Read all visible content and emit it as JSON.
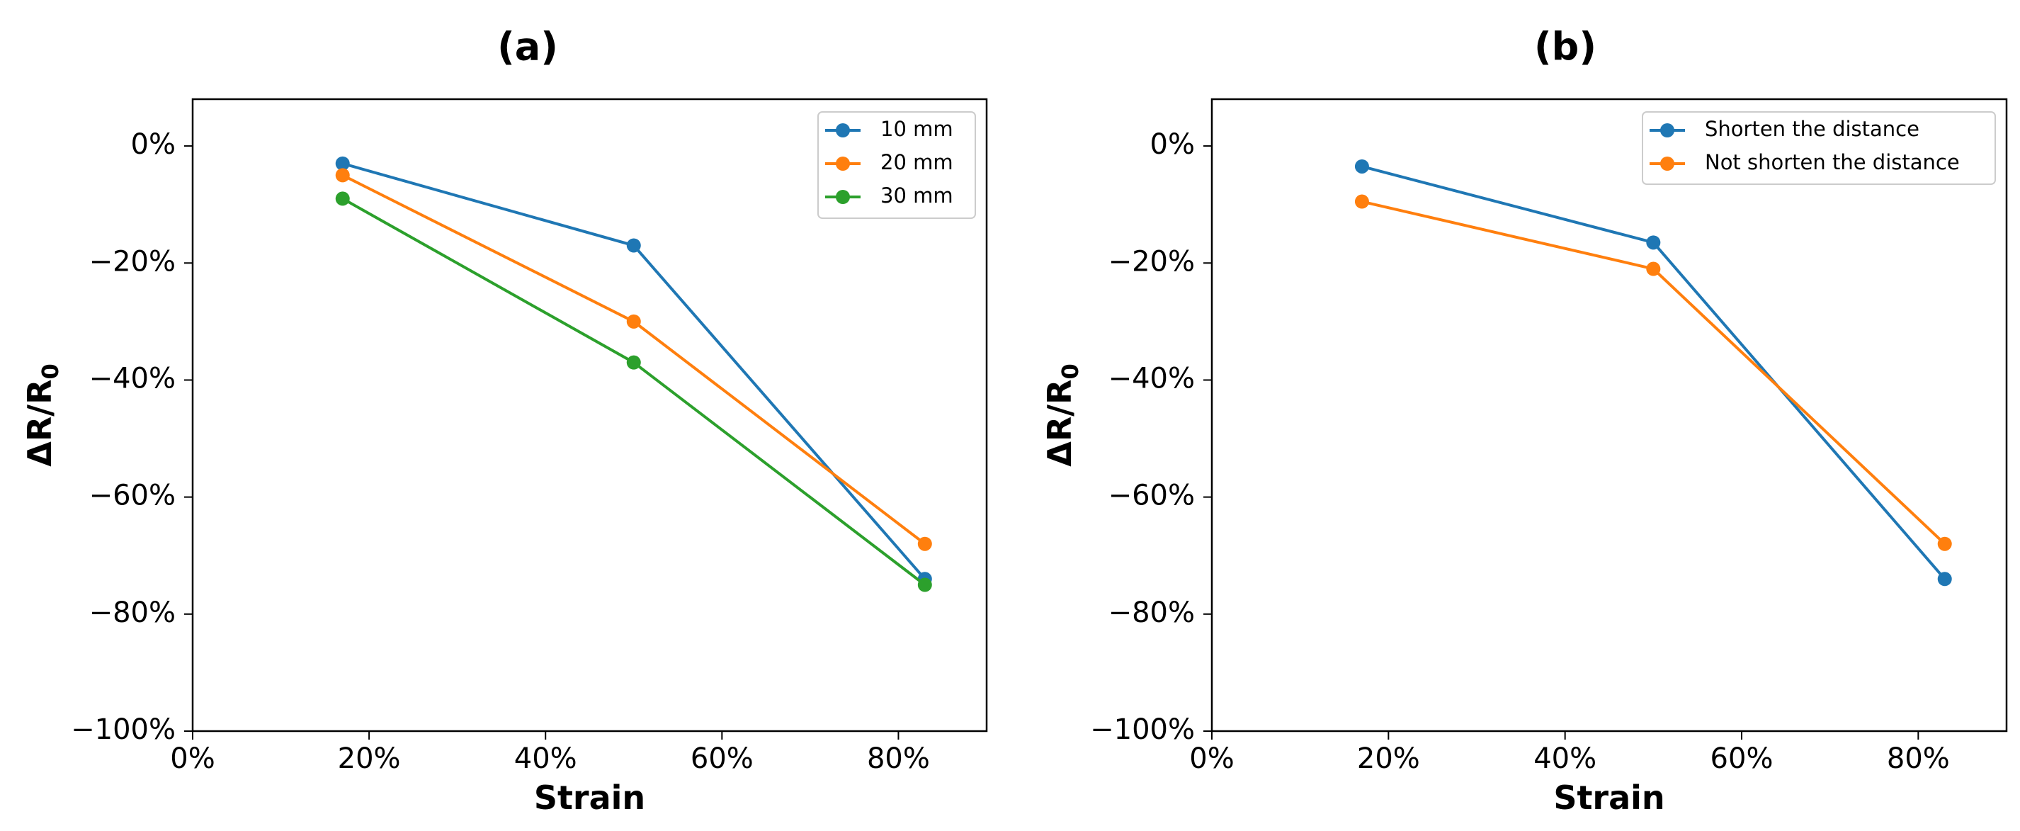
{
  "chart_data": [
    {
      "type": "line",
      "title": "(a)",
      "xlabel": "Strain",
      "ylabel_main": "ΔR/R",
      "ylabel_sub": "0",
      "xlim": [
        0,
        90
      ],
      "ylim": [
        -100,
        8
      ],
      "xticks": [
        0,
        20,
        40,
        60,
        80
      ],
      "xtick_labels": [
        "0%",
        "20%",
        "40%",
        "60%",
        "80%"
      ],
      "yticks": [
        0,
        -20,
        -40,
        -60,
        -80,
        -100
      ],
      "ytick_labels": [
        "0%",
        "−20%",
        "−40%",
        "−60%",
        "−80%",
        "−100%"
      ],
      "legend_position": "upper-right",
      "x": [
        17,
        50,
        83
      ],
      "series": [
        {
          "name": "10 mm",
          "color": "#1f77b4",
          "values": [
            -3,
            -17,
            -74
          ]
        },
        {
          "name": "20 mm",
          "color": "#ff7f0e",
          "values": [
            -5,
            -30,
            -68
          ]
        },
        {
          "name": "30 mm",
          "color": "#2ca02c",
          "values": [
            -9,
            -37,
            -75
          ]
        }
      ]
    },
    {
      "type": "line",
      "title": "(b)",
      "xlabel": "Strain",
      "ylabel_main": "ΔR/R",
      "ylabel_sub": "0",
      "xlim": [
        0,
        90
      ],
      "ylim": [
        -100,
        8
      ],
      "xticks": [
        0,
        20,
        40,
        60,
        80
      ],
      "xtick_labels": [
        "0%",
        "20%",
        "40%",
        "60%",
        "80%"
      ],
      "yticks": [
        0,
        -20,
        -40,
        -60,
        -80,
        -100
      ],
      "ytick_labels": [
        "0%",
        "−20%",
        "−40%",
        "−60%",
        "−80%",
        "−100%"
      ],
      "legend_position": "upper-right",
      "x": [
        17,
        50,
        83
      ],
      "series": [
        {
          "name": "Shorten the distance",
          "color": "#1f77b4",
          "values": [
            -3.5,
            -16.5,
            -74
          ]
        },
        {
          "name": "Not shorten the distance",
          "color": "#ff7f0e",
          "values": [
            -9.5,
            -21,
            -68
          ]
        }
      ]
    }
  ]
}
